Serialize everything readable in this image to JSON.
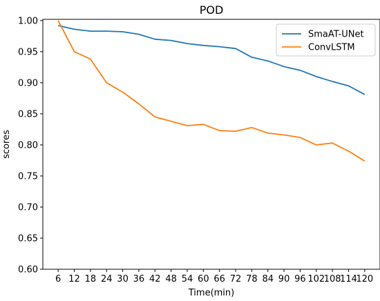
{
  "chart_data": {
    "type": "line",
    "title": "POD",
    "xlabel": "Time(min)",
    "ylabel": "scores",
    "x": [
      6,
      12,
      18,
      24,
      30,
      36,
      42,
      48,
      54,
      60,
      66,
      72,
      78,
      84,
      90,
      96,
      102,
      108,
      114,
      120
    ],
    "ylim": [
      0.6,
      1.0
    ],
    "yticks": [
      "0.60",
      "0.65",
      "0.70",
      "0.75",
      "0.80",
      "0.85",
      "0.90",
      "0.95",
      "1.00"
    ],
    "grid": false,
    "legend_position": "top-right",
    "series": [
      {
        "name": "SmaAT-UNet",
        "color": "#1f77b4",
        "values": [
          0.992,
          0.986,
          0.983,
          0.983,
          0.982,
          0.978,
          0.97,
          0.968,
          0.963,
          0.96,
          0.958,
          0.955,
          0.941,
          0.935,
          0.926,
          0.92,
          0.91,
          0.902,
          0.895,
          0.881
        ]
      },
      {
        "name": "ConvLSTM",
        "color": "#ff7f0e",
        "values": [
          1.0,
          0.95,
          0.938,
          0.9,
          0.885,
          0.866,
          0.845,
          0.838,
          0.831,
          0.833,
          0.823,
          0.822,
          0.828,
          0.819,
          0.816,
          0.812,
          0.8,
          0.803,
          0.79,
          0.774
        ]
      }
    ]
  }
}
